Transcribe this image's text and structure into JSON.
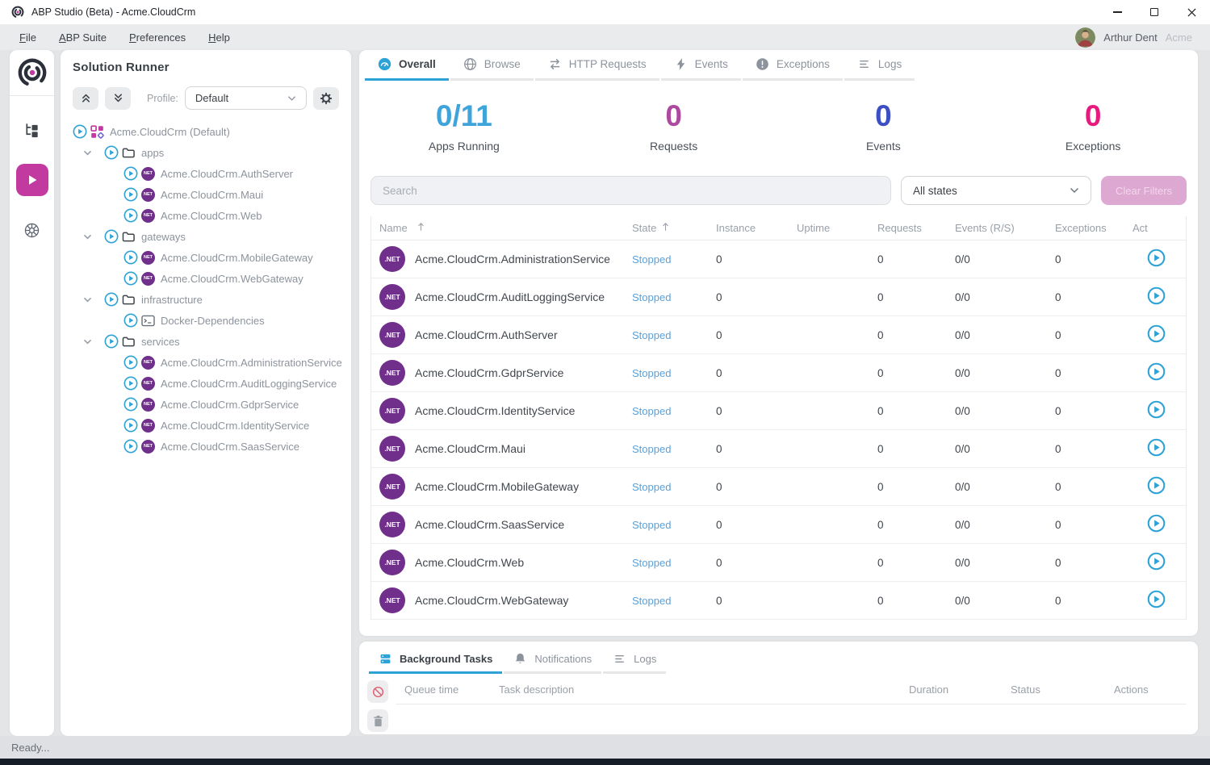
{
  "window": {
    "title": "ABP Studio (Beta) - Acme.CloudCrm"
  },
  "menu": {
    "items": [
      "File",
      "ABP Suite",
      "Preferences",
      "Help"
    ],
    "user": "Arthur Dent",
    "tenant": "Acme"
  },
  "solution_runner": {
    "title": "Solution Runner",
    "profile_label": "Profile:",
    "profile_value": "Default",
    "net_badge": "NET",
    "tree": [
      {
        "type": "solution",
        "label": "Acme.CloudCrm (Default)"
      },
      {
        "type": "folder",
        "label": "apps",
        "expanded": true
      },
      {
        "type": "project",
        "label": "Acme.CloudCrm.AuthServer"
      },
      {
        "type": "project",
        "label": "Acme.CloudCrm.Maui"
      },
      {
        "type": "project",
        "label": "Acme.CloudCrm.Web"
      },
      {
        "type": "folder",
        "label": "gateways",
        "expanded": true
      },
      {
        "type": "project",
        "label": "Acme.CloudCrm.MobileGateway"
      },
      {
        "type": "project",
        "label": "Acme.CloudCrm.WebGateway"
      },
      {
        "type": "folder",
        "label": "infrastructure",
        "expanded": true
      },
      {
        "type": "docker",
        "label": "Docker-Dependencies"
      },
      {
        "type": "folder",
        "label": "services",
        "expanded": true
      },
      {
        "type": "project",
        "label": "Acme.CloudCrm.AdministrationService"
      },
      {
        "type": "project",
        "label": "Acme.CloudCrm.AuditLoggingService"
      },
      {
        "type": "project",
        "label": "Acme.CloudCrm.GdprService"
      },
      {
        "type": "project",
        "label": "Acme.CloudCrm.IdentityService"
      },
      {
        "type": "project",
        "label": "Acme.CloudCrm.SaasService"
      }
    ]
  },
  "main": {
    "tabs": [
      {
        "label": "Overall",
        "icon": "overall",
        "active": true
      },
      {
        "label": "Browse",
        "icon": "globe",
        "active": false
      },
      {
        "label": "HTTP Requests",
        "icon": "swap",
        "active": false
      },
      {
        "label": "Events",
        "icon": "bolt",
        "active": false
      },
      {
        "label": "Exceptions",
        "icon": "exclamation",
        "active": false
      },
      {
        "label": "Logs",
        "icon": "logs",
        "active": false
      }
    ],
    "stats": [
      {
        "value": "0/11",
        "label": "Apps Running",
        "color": "#3ea4d9"
      },
      {
        "value": "0",
        "label": "Requests",
        "color": "#ad4a9f"
      },
      {
        "value": "0",
        "label": "Events",
        "color": "#3d4fc4"
      },
      {
        "value": "0",
        "label": "Exceptions",
        "color": "#e71a7d"
      }
    ],
    "search_placeholder": "Search",
    "state_filter": "All states",
    "clear_filters": "Clear Filters",
    "table": {
      "net_badge": ".NET",
      "columns": [
        {
          "key": "name",
          "label": "Name",
          "sort": "asc"
        },
        {
          "key": "state",
          "label": "State",
          "sort": "asc"
        },
        {
          "key": "instance",
          "label": "Instance"
        },
        {
          "key": "uptime",
          "label": "Uptime"
        },
        {
          "key": "requests",
          "label": "Requests"
        },
        {
          "key": "events",
          "label": "Events (R/S)"
        },
        {
          "key": "exceptions",
          "label": "Exceptions"
        },
        {
          "key": "actions",
          "label": "Act"
        }
      ],
      "rows": [
        {
          "name": "Acme.CloudCrm.AdministrationService",
          "state": "Stopped",
          "instance": "0",
          "uptime": "",
          "requests": "0",
          "events": "0/0",
          "exceptions": "0"
        },
        {
          "name": "Acme.CloudCrm.AuditLoggingService",
          "state": "Stopped",
          "instance": "0",
          "uptime": "",
          "requests": "0",
          "events": "0/0",
          "exceptions": "0"
        },
        {
          "name": "Acme.CloudCrm.AuthServer",
          "state": "Stopped",
          "instance": "0",
          "uptime": "",
          "requests": "0",
          "events": "0/0",
          "exceptions": "0"
        },
        {
          "name": "Acme.CloudCrm.GdprService",
          "state": "Stopped",
          "instance": "0",
          "uptime": "",
          "requests": "0",
          "events": "0/0",
          "exceptions": "0"
        },
        {
          "name": "Acme.CloudCrm.IdentityService",
          "state": "Stopped",
          "instance": "0",
          "uptime": "",
          "requests": "0",
          "events": "0/0",
          "exceptions": "0"
        },
        {
          "name": "Acme.CloudCrm.Maui",
          "state": "Stopped",
          "instance": "0",
          "uptime": "",
          "requests": "0",
          "events": "0/0",
          "exceptions": "0"
        },
        {
          "name": "Acme.CloudCrm.MobileGateway",
          "state": "Stopped",
          "instance": "0",
          "uptime": "",
          "requests": "0",
          "events": "0/0",
          "exceptions": "0"
        },
        {
          "name": "Acme.CloudCrm.SaasService",
          "state": "Stopped",
          "instance": "0",
          "uptime": "",
          "requests": "0",
          "events": "0/0",
          "exceptions": "0"
        },
        {
          "name": "Acme.CloudCrm.Web",
          "state": "Stopped",
          "instance": "0",
          "uptime": "",
          "requests": "0",
          "events": "0/0",
          "exceptions": "0"
        },
        {
          "name": "Acme.CloudCrm.WebGateway",
          "state": "Stopped",
          "instance": "0",
          "uptime": "",
          "requests": "0",
          "events": "0/0",
          "exceptions": "0"
        }
      ]
    }
  },
  "bottom_panel": {
    "tabs": [
      {
        "label": "Background Tasks",
        "icon": "tasks",
        "active": true
      },
      {
        "label": "Notifications",
        "icon": "bell",
        "active": false
      },
      {
        "label": "Logs",
        "icon": "logs",
        "active": false
      }
    ],
    "columns": [
      "Queue time",
      "Task description",
      "Duration",
      "Status",
      "Actions"
    ]
  },
  "status_bar": {
    "text": "Ready..."
  },
  "colors": {
    "accent_blue": "#2da2d6",
    "accent_magenta": "#c23aa0",
    "stopped_state": "#5ba0d8",
    "net_badge_bg": "#702f8a",
    "stat_apps": "#3ea4d9",
    "stat_requests": "#ad4a9f",
    "stat_events": "#3d4fc4",
    "stat_exceptions": "#e71a7d"
  }
}
